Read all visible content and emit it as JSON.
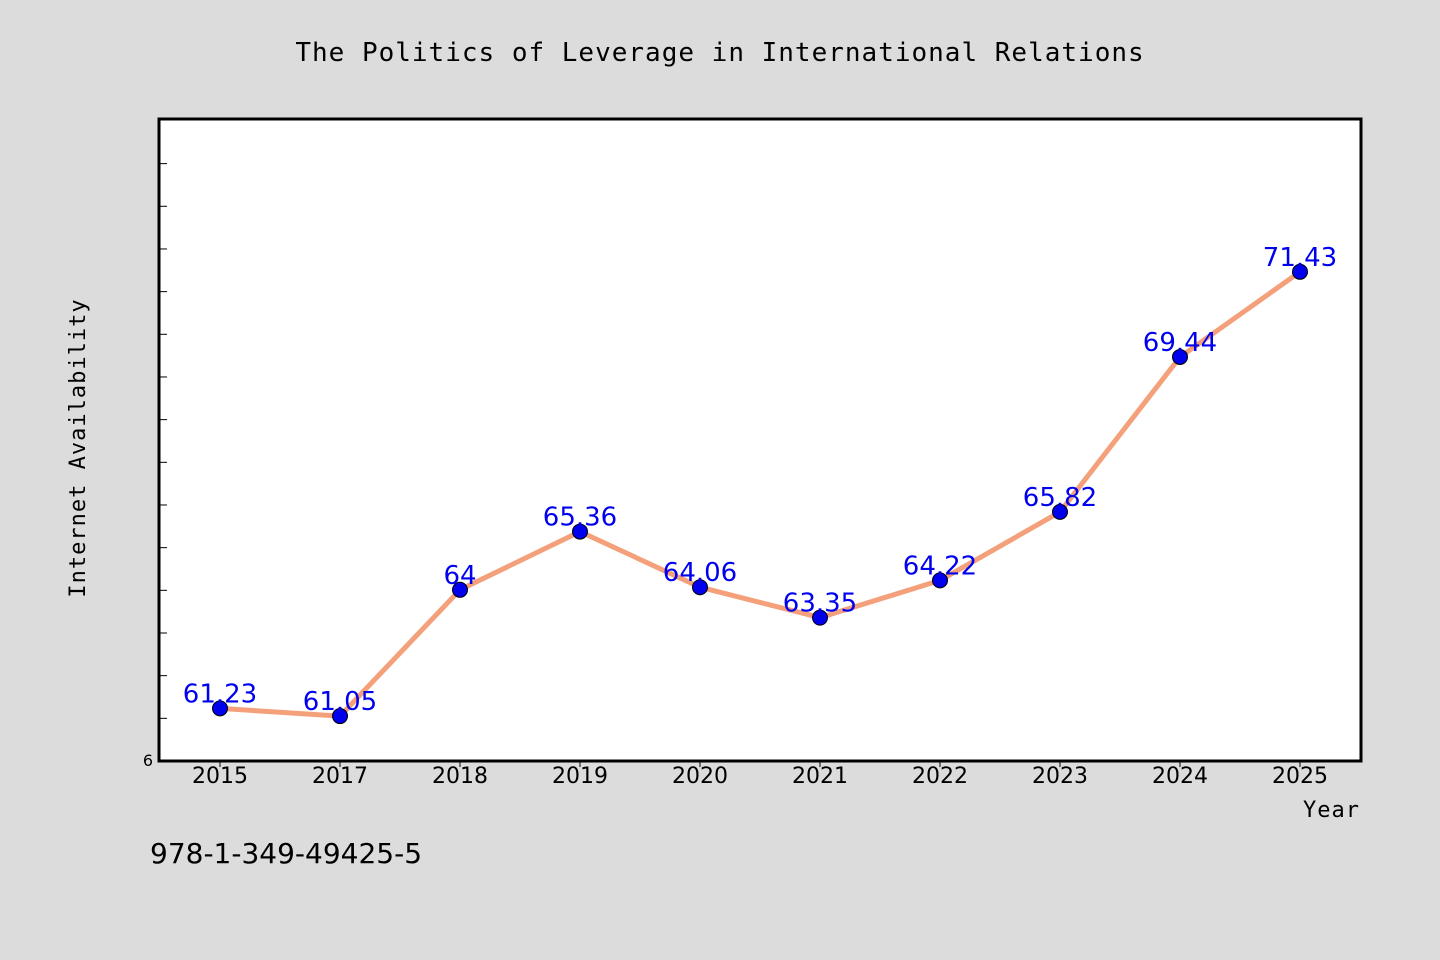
{
  "chart_data": {
    "type": "line",
    "title": "The Politics of Leverage in International Relations",
    "xlabel": "Year",
    "ylabel": "Internet Availability",
    "categories": [
      "2015",
      "2017",
      "2018",
      "2019",
      "2020",
      "2021",
      "2022",
      "2023",
      "2024",
      "2025"
    ],
    "values": [
      61.23,
      61.05,
      64,
      65.36,
      64.06,
      63.35,
      64.22,
      65.82,
      69.44,
      71.43
    ],
    "value_labels": [
      "61.23",
      "61.05",
      "64",
      "65.36",
      "64.06",
      "63.35",
      "64.22",
      "65.82",
      "69.44",
      "71.43"
    ],
    "ylim": [
      60,
      75
    ],
    "ytick_labels": [
      "6"
    ],
    "grid": false,
    "line_color": "#f4a07a",
    "marker_color": "#0000ee",
    "label_color": "#0000ee"
  },
  "footnote": "978-1-349-49425-5"
}
